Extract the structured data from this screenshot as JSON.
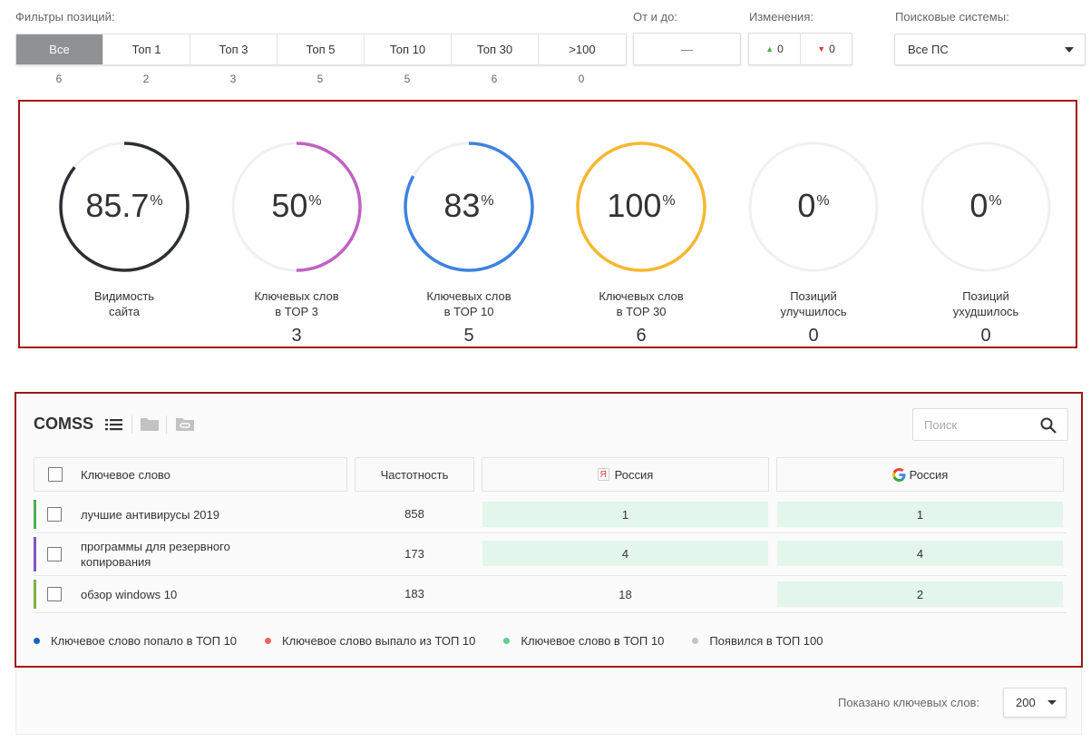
{
  "filters": {
    "label": "Фильтры позиций:",
    "tabs": [
      {
        "label": "Все",
        "count": "6"
      },
      {
        "label": "Топ 1",
        "count": "2"
      },
      {
        "label": "Топ 3",
        "count": "3"
      },
      {
        "label": "Топ 5",
        "count": "5"
      },
      {
        "label": "Топ 10",
        "count": "5"
      },
      {
        "label": "Топ 30",
        "count": "6"
      },
      {
        "label": ">100",
        "count": "0"
      }
    ],
    "range_label": "От и до:",
    "range_value": "—",
    "changes_label": "Изменения:",
    "changes_up": "0",
    "changes_down": "0",
    "search_engines_label": "Поисковые системы:",
    "search_engines_value": "Все ПС"
  },
  "stats": [
    {
      "value": "85.7",
      "unit": "%",
      "caption1": "Видимость",
      "caption2": "сайта",
      "count": "",
      "percent": 85.7,
      "color": "#2b2f33"
    },
    {
      "value": "50",
      "unit": "%",
      "caption1": "Ключевых слов",
      "caption2": "в TOP 3",
      "count": "3",
      "percent": 50,
      "color": "#c061c4"
    },
    {
      "value": "83",
      "unit": "%",
      "caption1": "Ключевых слов",
      "caption2": "в TOP 10",
      "count": "5",
      "percent": 83,
      "color": "#3d82e0"
    },
    {
      "value": "100",
      "unit": "%",
      "caption1": "Ключевых слов",
      "caption2": "в TOP 30",
      "count": "6",
      "percent": 100,
      "color": "#f7b731"
    },
    {
      "value": "0",
      "unit": "%",
      "caption1": "Позиций",
      "caption2": "улучшилось",
      "count": "0",
      "percent": 0,
      "color": "#4caf50"
    },
    {
      "value": "0",
      "unit": "%",
      "caption1": "Позиций",
      "caption2": "ухудшилось",
      "count": "0",
      "percent": 0,
      "color": "#e53935"
    }
  ],
  "table": {
    "title": "COMSS",
    "search_placeholder": "Поиск",
    "headers": {
      "keyword": "Ключевое слово",
      "frequency": "Частотность",
      "yandex": "Россия",
      "google": "Россия"
    },
    "rows": [
      {
        "keyword": "лучшие антивирусы 2019",
        "frequency": "858",
        "yandex": "1",
        "google": "1",
        "bar": "#4caf50"
      },
      {
        "keyword": "программы для резервного копирования",
        "frequency": "173",
        "yandex": "4",
        "google": "4",
        "bar": "#7e57c2"
      },
      {
        "keyword": "обзор windows 10",
        "frequency": "183",
        "yandex": "18",
        "google": "2",
        "bar": "#7cb342"
      }
    ],
    "legend": [
      {
        "label": "Ключевое слово попало в ТОП 10",
        "color": "#1565c0"
      },
      {
        "label": "Ключевое слово выпало из ТОП 10",
        "color": "#ef6461"
      },
      {
        "label": "Ключевое слово в ТОП 10",
        "color": "#5ccf8c"
      },
      {
        "label": "Появился в ТОП 100",
        "color": "#c4c4c4"
      }
    ]
  },
  "footer": {
    "shown_label": "Показано ключевых слов:",
    "per_page": "200"
  }
}
